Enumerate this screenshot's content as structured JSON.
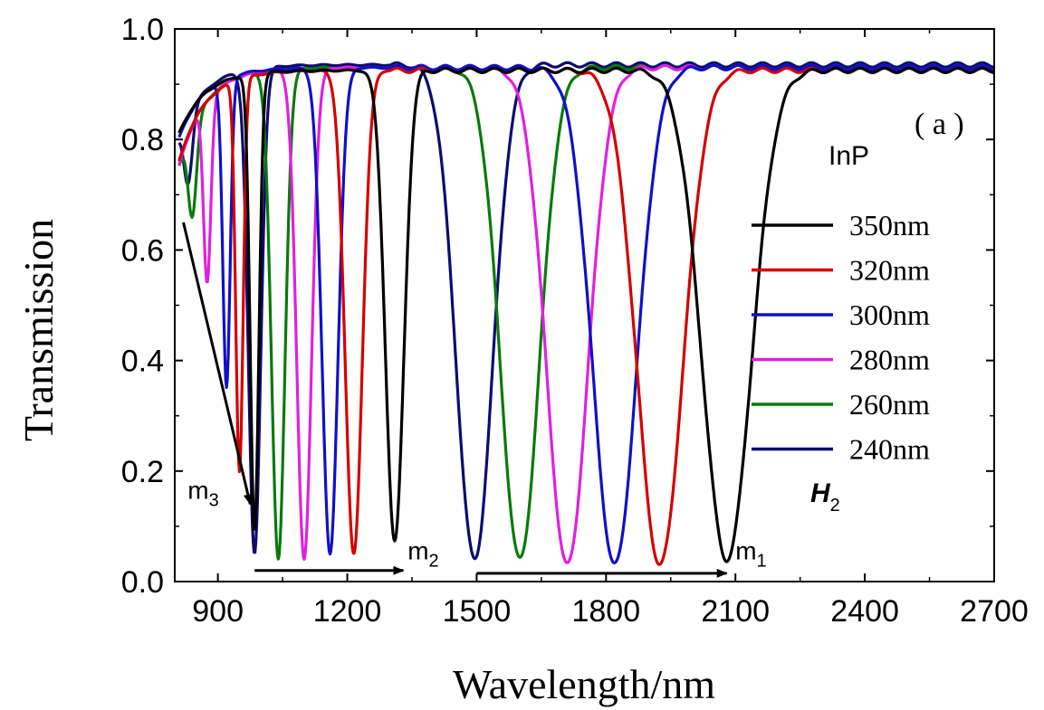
{
  "chart_data": {
    "type": "line",
    "title": "",
    "panel_label": "( a )",
    "material": "InP",
    "mode_label": {
      "main": "H",
      "sub": "2"
    },
    "xlabel": "Wavelength/nm",
    "ylabel": "Transmission",
    "xlim": [
      800,
      2700
    ],
    "ylim": [
      0.0,
      1.0
    ],
    "xticks": [
      900,
      1200,
      1500,
      1800,
      2100,
      2400,
      2700
    ],
    "yticks": [
      0.0,
      0.2,
      0.4,
      0.6,
      0.8,
      1.0
    ],
    "ytick_labels": [
      "0.0",
      "0.2",
      "0.4",
      "0.6",
      "0.8",
      "1.0"
    ],
    "legend_position": "right",
    "series": [
      {
        "name": "350nm",
        "color": "#000000",
        "dips": [
          {
            "x": 2080,
            "min": 0.04,
            "w": 80
          },
          {
            "x": 1310,
            "min": 0.07,
            "w": 30
          },
          {
            "x": 985,
            "min": 0.09,
            "w": 14
          }
        ],
        "base": 0.925,
        "start": 0.79
      },
      {
        "name": "320nm",
        "color": "#d40000",
        "dips": [
          {
            "x": 1925,
            "min": 0.03,
            "w": 75
          },
          {
            "x": 1215,
            "min": 0.05,
            "w": 28
          },
          {
            "x": 950,
            "min": 0.2,
            "w": 12
          }
        ],
        "base": 0.925,
        "start": 0.73
      },
      {
        "name": "300nm",
        "color": "#1010c8",
        "dips": [
          {
            "x": 1820,
            "min": 0.03,
            "w": 72
          },
          {
            "x": 1160,
            "min": 0.05,
            "w": 26
          },
          {
            "x": 920,
            "min": 0.35,
            "w": 12
          }
        ],
        "base": 0.93,
        "start": 0.78
      },
      {
        "name": "280nm",
        "color": "#e020e0",
        "dips": [
          {
            "x": 1710,
            "min": 0.03,
            "w": 68
          },
          {
            "x": 1100,
            "min": 0.04,
            "w": 24
          },
          {
            "x": 875,
            "min": 0.54,
            "w": 12
          }
        ],
        "base": 0.93,
        "start": 0.72
      },
      {
        "name": "260nm",
        "color": "#0a7a0a",
        "dips": [
          {
            "x": 1600,
            "min": 0.04,
            "w": 64
          },
          {
            "x": 1040,
            "min": 0.04,
            "w": 22
          },
          {
            "x": 840,
            "min": 0.66,
            "w": 14
          }
        ],
        "base": 0.93,
        "start": 0.72
      },
      {
        "name": "240nm",
        "color": "#0c0c70",
        "dips": [
          {
            "x": 1495,
            "min": 0.04,
            "w": 60
          },
          {
            "x": 985,
            "min": 0.05,
            "w": 20
          },
          {
            "x": 830,
            "min": 0.72,
            "w": 14
          }
        ],
        "base": 0.935,
        "start": 0.78
      }
    ],
    "annotations": [
      {
        "main": "m",
        "sub": "1",
        "x": 2100,
        "y": 0.04
      },
      {
        "main": "m",
        "sub": "2",
        "x": 1340,
        "y": 0.04
      },
      {
        "main": "m",
        "sub": "3",
        "x": 830,
        "y": 0.15
      }
    ],
    "arrows": [
      {
        "x1": 1500,
        "y1": 0.015,
        "x2": 2080,
        "y2": 0.015
      },
      {
        "x1": 985,
        "y1": 0.02,
        "x2": 1330,
        "y2": 0.02
      },
      {
        "x1": 820,
        "y1": 0.65,
        "x2": 975,
        "y2": 0.14
      }
    ]
  }
}
